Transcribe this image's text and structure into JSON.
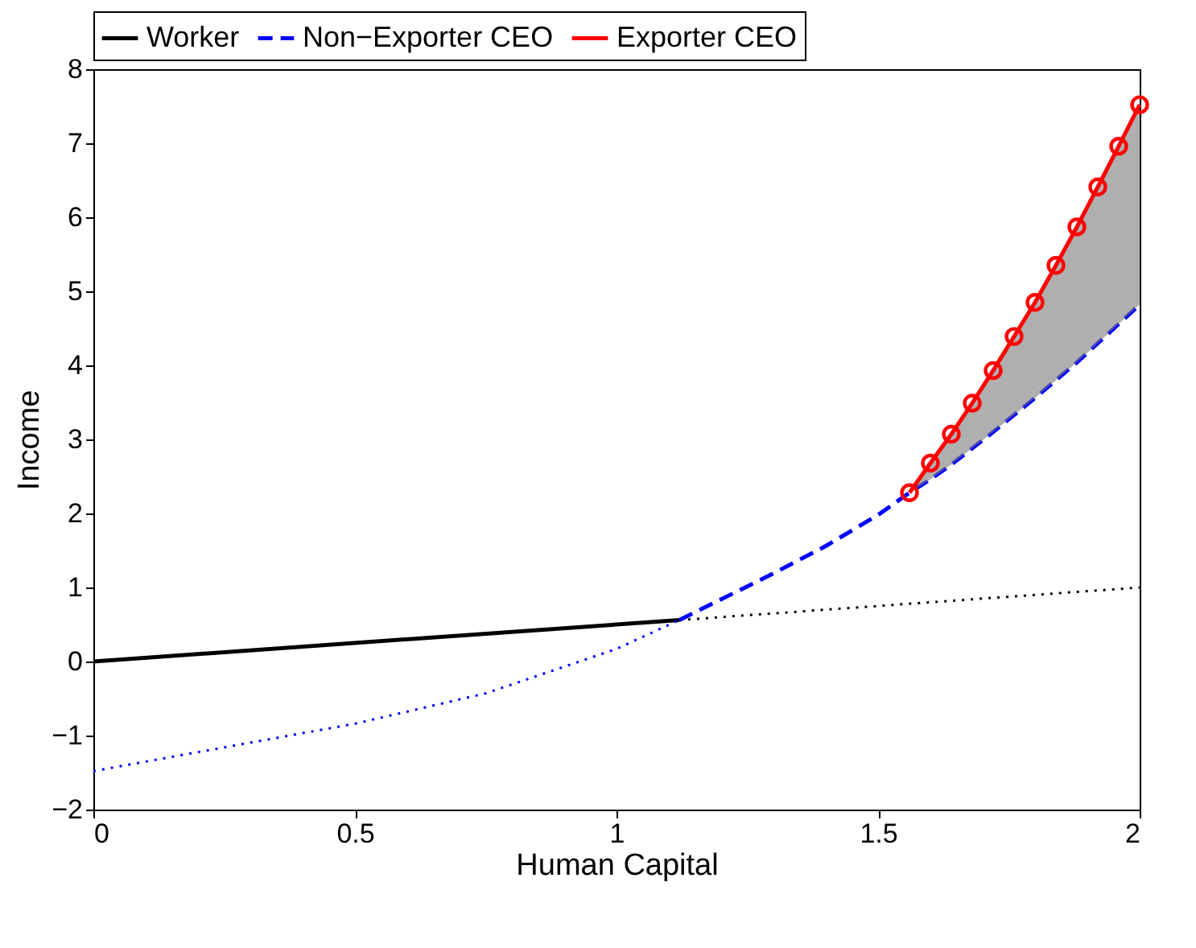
{
  "chart_data": {
    "type": "line",
    "xlabel": "Human Capital",
    "ylabel": "Income",
    "xlim": [
      0,
      2
    ],
    "ylim": [
      -2,
      8
    ],
    "xticks": [
      0,
      0.5,
      1,
      1.5,
      2
    ],
    "yticks": [
      -2,
      -1,
      0,
      1,
      2,
      3,
      4,
      5,
      6,
      7,
      8
    ],
    "grid": false,
    "legend": "top",
    "series": [
      {
        "name": "Worker",
        "color": "#000000",
        "line_style": "solid",
        "x": [
          0,
          1.12
        ],
        "values": [
          0,
          0.56
        ]
      },
      {
        "color": "#000000",
        "line_style": "dotted",
        "x": [
          1.12,
          2
        ],
        "values": [
          0.56,
          1.0
        ]
      },
      {
        "name": "Non−Exporter CEO",
        "color": "#0000ff",
        "line_style": "dashed",
        "x": [
          1.12,
          1.2,
          1.3,
          1.4,
          1.5,
          1.56,
          1.6,
          1.64,
          1.68,
          1.72,
          1.76,
          1.8,
          1.84,
          1.88,
          1.92,
          1.96,
          2.0
        ],
        "values": [
          0.56,
          0.84,
          1.19,
          1.56,
          1.98,
          2.28,
          2.46,
          2.66,
          2.88,
          3.1,
          3.33,
          3.56,
          3.8,
          4.04,
          4.3,
          4.56,
          4.82
        ]
      },
      {
        "color": "#0000ff",
        "line_style": "dotted",
        "x": [
          0,
          0.25,
          0.5,
          0.75,
          1.0,
          1.12
        ],
        "values": [
          -1.48,
          -1.16,
          -0.84,
          -0.43,
          0.17,
          0.56
        ]
      },
      {
        "name": "Exporter CEO",
        "color": "#ff0000",
        "line_style": "solid",
        "marker": "circle",
        "x": [
          1.56,
          1.6,
          1.64,
          1.68,
          1.72,
          1.76,
          1.8,
          1.84,
          1.88,
          1.92,
          1.96,
          2.0
        ],
        "values": [
          2.28,
          2.68,
          3.07,
          3.49,
          3.93,
          4.39,
          4.85,
          5.35,
          5.87,
          6.41,
          6.96,
          7.52
        ],
        "lower": [
          2.28,
          2.46,
          2.66,
          2.88,
          3.1,
          3.33,
          3.56,
          3.8,
          4.04,
          4.3,
          4.56,
          4.82
        ],
        "upper": [
          2.28,
          2.68,
          3.07,
          3.49,
          3.93,
          4.39,
          4.85,
          5.35,
          5.87,
          6.41,
          6.96,
          7.52
        ]
      }
    ]
  }
}
